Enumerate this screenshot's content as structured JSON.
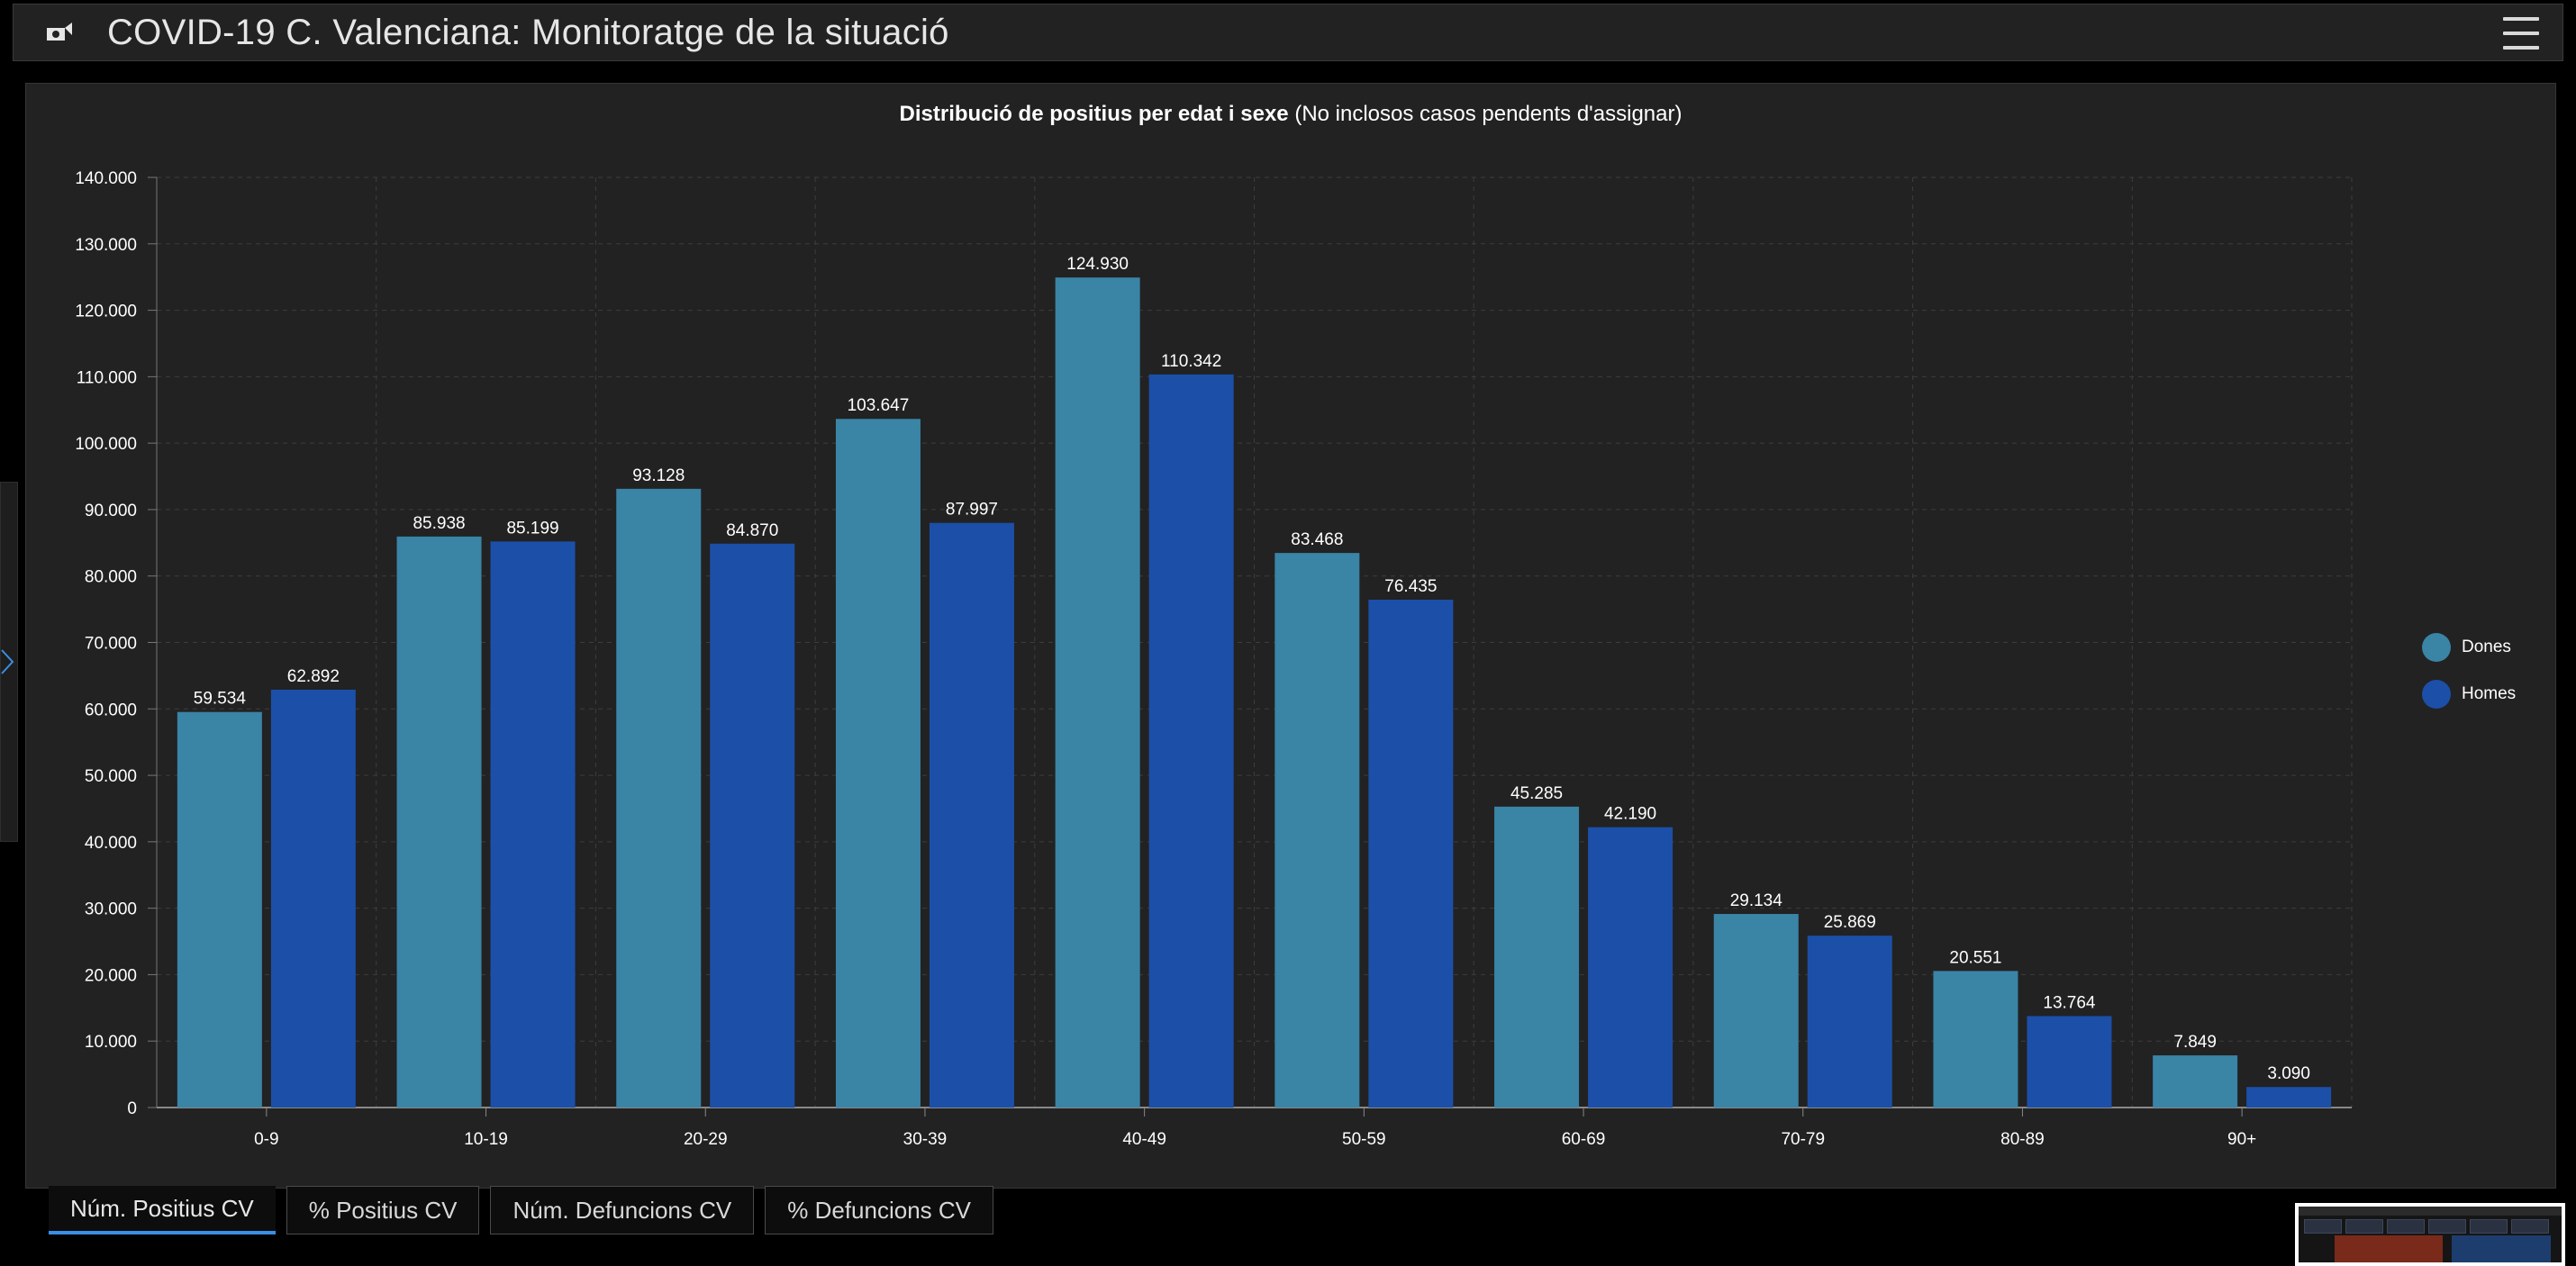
{
  "header": {
    "title": "COVID-19 C. Valenciana: Monitoratge de la situació"
  },
  "colors": {
    "dones": "#3a84a6",
    "homes": "#1c4fa8",
    "active_tab": "#3a8ee6"
  },
  "chart_data": {
    "type": "bar",
    "title_bold": "Distribució de positius per edat i sexe",
    "title_rest": "(No inclosos casos pendents d'assignar)",
    "categories": [
      "0-9",
      "10-19",
      "20-29",
      "30-39",
      "40-49",
      "50-59",
      "60-69",
      "70-79",
      "80-89",
      "90+"
    ],
    "series": [
      {
        "name": "Dones",
        "values": [
          59534,
          85938,
          93128,
          103647,
          124930,
          83468,
          45285,
          29134,
          20551,
          7849
        ],
        "labels": [
          "59.534",
          "85.938",
          "93.128",
          "103.647",
          "124.930",
          "83.468",
          "45.285",
          "29.134",
          "20.551",
          "7.849"
        ]
      },
      {
        "name": "Homes",
        "values": [
          62892,
          85199,
          84870,
          87997,
          110342,
          76435,
          42190,
          25869,
          13764,
          3090
        ],
        "labels": [
          "62.892",
          "85.199",
          "84.870",
          "87.997",
          "110.342",
          "76.435",
          "42.190",
          "25.869",
          "13.764",
          "3.090"
        ]
      }
    ],
    "ylim": [
      0,
      140000
    ],
    "yticks": [
      0,
      10000,
      20000,
      30000,
      40000,
      50000,
      60000,
      70000,
      80000,
      90000,
      100000,
      110000,
      120000,
      130000,
      140000
    ],
    "ytick_labels": [
      "0",
      "10.000",
      "20.000",
      "30.000",
      "40.000",
      "50.000",
      "60.000",
      "70.000",
      "80.000",
      "90.000",
      "100.000",
      "110.000",
      "120.000",
      "130.000",
      "140.000"
    ],
    "grid": true,
    "legend_placement": "right"
  },
  "tabs": [
    {
      "label": "Núm. Positius CV",
      "active": true
    },
    {
      "label": "% Positius CV",
      "active": false
    },
    {
      "label": "Núm. Defuncions CV",
      "active": false
    },
    {
      "label": "% Defuncions CV",
      "active": false
    }
  ]
}
